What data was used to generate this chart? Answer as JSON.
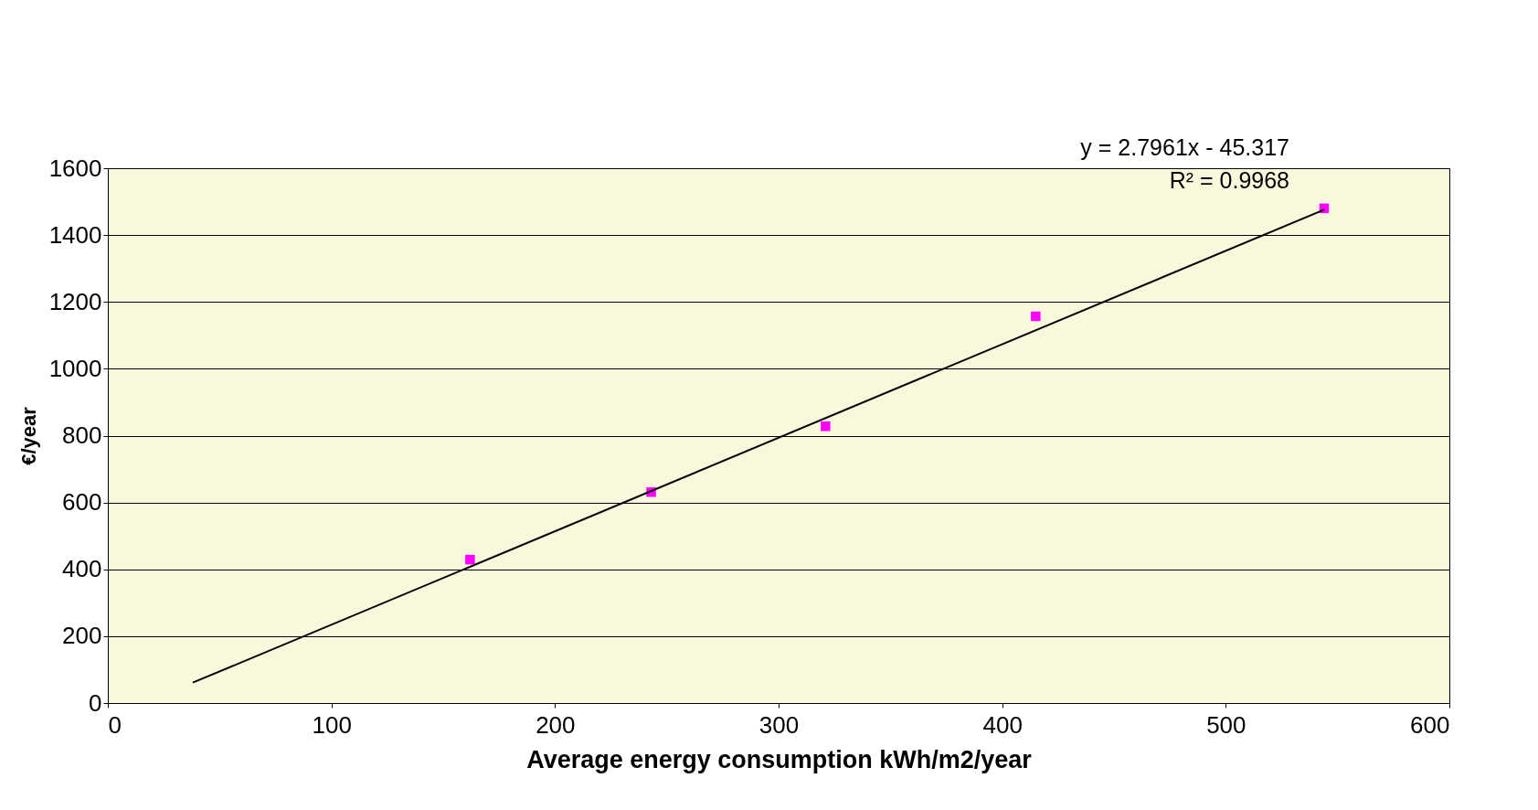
{
  "chart_data": {
    "type": "scatter",
    "xlabel": "Average energy consumption kWh/m2/year",
    "ylabel": "€/year",
    "series": [
      {
        "color": "#ff00ff",
        "marker": "square",
        "x": [
          162,
          243,
          321,
          415,
          544
        ],
        "values": [
          429,
          631,
          828,
          1157,
          1480
        ]
      },
      {
        "type": "line",
        "color": "#000000",
        "marker": "none",
        "line_style": "solid",
        "x": [
          38,
          544
        ],
        "values": [
          61,
          1476
        ]
      }
    ],
    "annotations": [
      "y = 2.7961x - 45.317",
      "R² = 0.9968"
    ],
    "xlim": [
      0,
      600
    ],
    "xticks": [
      0,
      100,
      200,
      300,
      400,
      500,
      600
    ],
    "ylim": [
      0,
      1600
    ],
    "yticks": [
      0,
      200,
      400,
      600,
      800,
      1000,
      1200,
      1400,
      1600
    ],
    "grid": "y"
  }
}
